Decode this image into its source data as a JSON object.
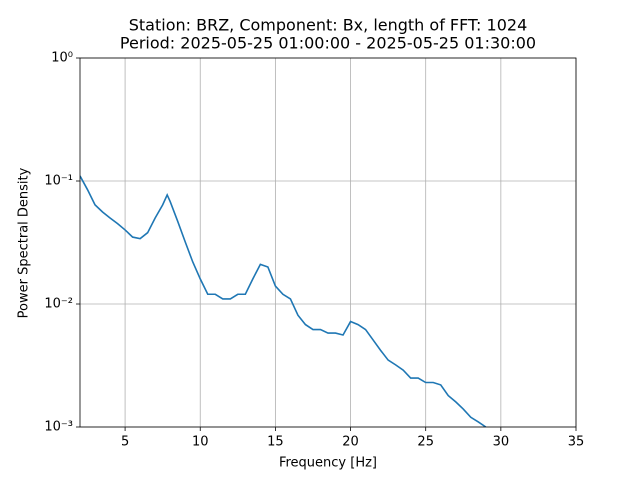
{
  "chart_data": {
    "type": "line",
    "title": "Station: BRZ, Component: Bx, length of FFT: 1024",
    "subtitle": "Period: 2025-05-25 01:00:00 - 2025-05-25 01:30:00",
    "x_label": "Frequency [Hz]",
    "y_label": "Power Spectral Density",
    "log_y": true,
    "grid": true,
    "xlim": [
      2,
      35
    ],
    "xticks": [
      5,
      10,
      15,
      20,
      25,
      30,
      35
    ],
    "ylim": [
      0.001,
      1
    ],
    "yticks": [
      {
        "value": 0.001,
        "label": "10⁻³"
      },
      {
        "value": 0.01,
        "label": "10⁻²"
      },
      {
        "value": 0.1,
        "label": "10⁻¹"
      },
      {
        "value": 1,
        "label": "10⁰"
      }
    ],
    "x": [
      2,
      2.5,
      3,
      3.5,
      4,
      4.5,
      5,
      5.5,
      6,
      6.5,
      7,
      7.5,
      7.8,
      8,
      8.5,
      9,
      9.5,
      10,
      10.5,
      11,
      11.5,
      12,
      12.5,
      13,
      13.5,
      14,
      14.5,
      15,
      15.5,
      16,
      16.5,
      17,
      17.5,
      18,
      18.5,
      19,
      19.5,
      20,
      20.5,
      21,
      21.5,
      22,
      22.5,
      23,
      23.5,
      24,
      24.5,
      25,
      25.5,
      26,
      26.5,
      27,
      27.5,
      28,
      28.5,
      29
    ],
    "series": [
      {
        "color": "#1f77b4",
        "values": [
          0.11,
          0.085,
          0.064,
          0.056,
          0.05,
          0.045,
          0.04,
          0.035,
          0.034,
          0.038,
          0.05,
          0.064,
          0.077,
          0.068,
          0.047,
          0.032,
          0.022,
          0.016,
          0.012,
          0.012,
          0.011,
          0.011,
          0.012,
          0.012,
          0.016,
          0.021,
          0.02,
          0.014,
          0.012,
          0.011,
          0.0081,
          0.0068,
          0.0062,
          0.0062,
          0.0058,
          0.0058,
          0.0056,
          0.0072,
          0.0068,
          0.0062,
          0.0051,
          0.0042,
          0.0035,
          0.0032,
          0.0029,
          0.0025,
          0.0025,
          0.0023,
          0.0023,
          0.0022,
          0.0018,
          0.0016,
          0.0014,
          0.0012,
          0.0011,
          0.001
        ]
      }
    ]
  }
}
